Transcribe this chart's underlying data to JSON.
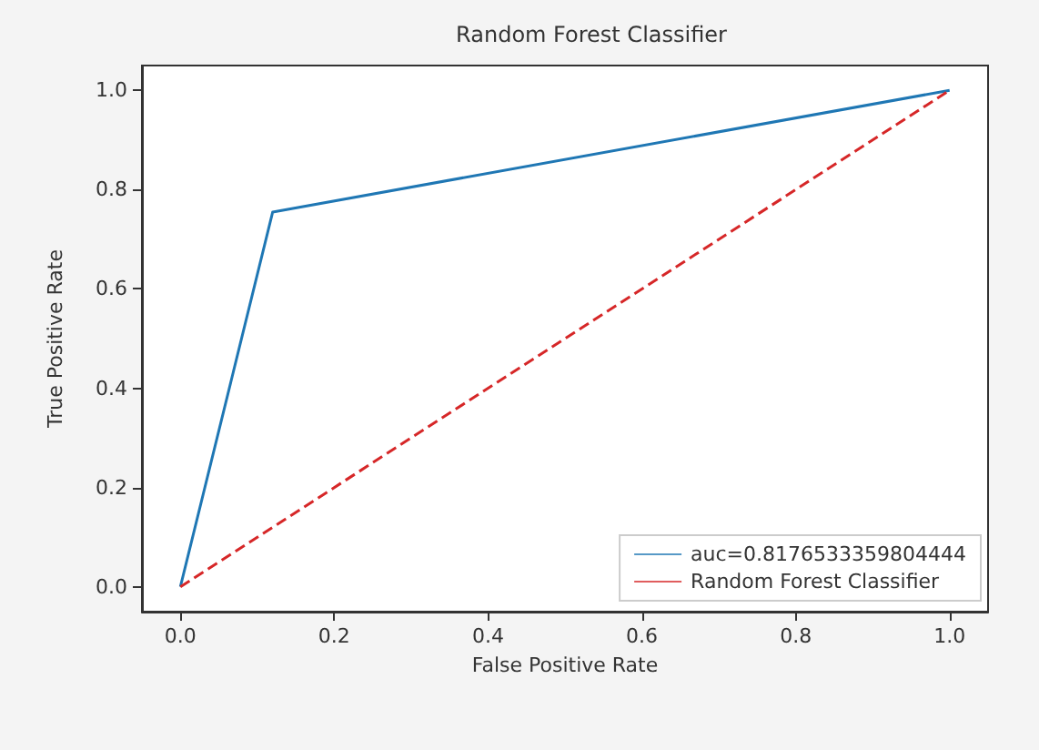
{
  "chart_data": {
    "type": "line",
    "title": "Random Forest Classifier",
    "xlabel": "False Positive Rate",
    "ylabel": "True Positive Rate",
    "series": [
      {
        "name": "auc=0.8176533359804444",
        "color": "#1f77b4",
        "x": [
          0,
          0.12,
          1
        ],
        "values": [
          0,
          0.755,
          1
        ],
        "line_style": "solid"
      },
      {
        "name": "Random Forest Classifier",
        "color": "#d62728",
        "x": [
          0,
          1
        ],
        "values": [
          0,
          1
        ],
        "line_style": "dashed"
      }
    ],
    "xlim": [
      -0.05,
      1.05
    ],
    "ylim": [
      -0.05,
      1.05
    ],
    "xticks": [
      {
        "value": 0,
        "label": "0.0"
      },
      {
        "value": 0.2,
        "label": "0.2"
      },
      {
        "value": 0.4,
        "label": "0.4"
      },
      {
        "value": 0.6,
        "label": "0.6"
      },
      {
        "value": 0.8,
        "label": "0.8"
      },
      {
        "value": 1,
        "label": "1.0"
      }
    ],
    "yticks": [
      {
        "value": 0,
        "label": "0.0"
      },
      {
        "value": 0.2,
        "label": "0.2"
      },
      {
        "value": 0.4,
        "label": "0.4"
      },
      {
        "value": 0.6,
        "label": "0.6"
      },
      {
        "value": 0.8,
        "label": "0.8"
      },
      {
        "value": 1,
        "label": "1.0"
      }
    ],
    "grid": false,
    "legend": "bottom right",
    "marker": "none"
  }
}
